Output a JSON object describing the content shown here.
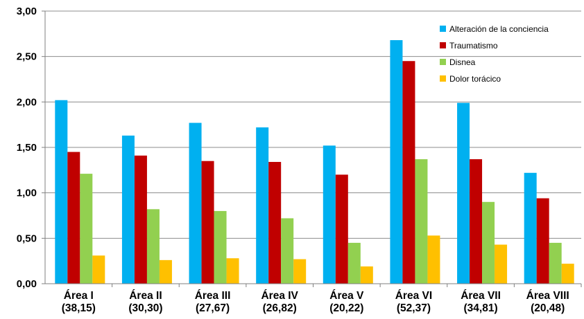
{
  "chart_data": {
    "type": "bar",
    "title": "",
    "xlabel": "",
    "ylabel": "",
    "ylim": [
      0,
      3
    ],
    "yticks": [
      "0,00",
      "0,50",
      "1,00",
      "1,50",
      "2,00",
      "2,50",
      "3,00"
    ],
    "grid": "horizontal",
    "legend_position": "top-right",
    "categories": [
      [
        "Área I",
        "(38,15)"
      ],
      [
        "Área II",
        "(30,30)"
      ],
      [
        "Área III",
        "(27,67)"
      ],
      [
        "Área IV",
        "(26,82)"
      ],
      [
        "Área V",
        "(20,22)"
      ],
      [
        "Área VI",
        "(52,37)"
      ],
      [
        "Área VII",
        "(34,81)"
      ],
      [
        "Área VIII",
        "(20,48)"
      ]
    ],
    "series": [
      {
        "name": "Alteración de la conciencia",
        "color": "#00B0F0",
        "values": [
          2.02,
          1.63,
          1.77,
          1.72,
          1.52,
          2.68,
          1.99,
          1.22
        ]
      },
      {
        "name": "Traumatismo",
        "color": "#C00000",
        "values": [
          1.45,
          1.41,
          1.35,
          1.34,
          1.2,
          2.45,
          1.37,
          0.94
        ]
      },
      {
        "name": "Disnea",
        "color": "#92D050",
        "values": [
          1.21,
          0.82,
          0.8,
          0.72,
          0.45,
          1.37,
          0.9,
          0.45
        ]
      },
      {
        "name": "Dolor torácico",
        "color": "#FFC000",
        "values": [
          0.31,
          0.26,
          0.28,
          0.27,
          0.19,
          0.53,
          0.43,
          0.22
        ]
      }
    ]
  }
}
